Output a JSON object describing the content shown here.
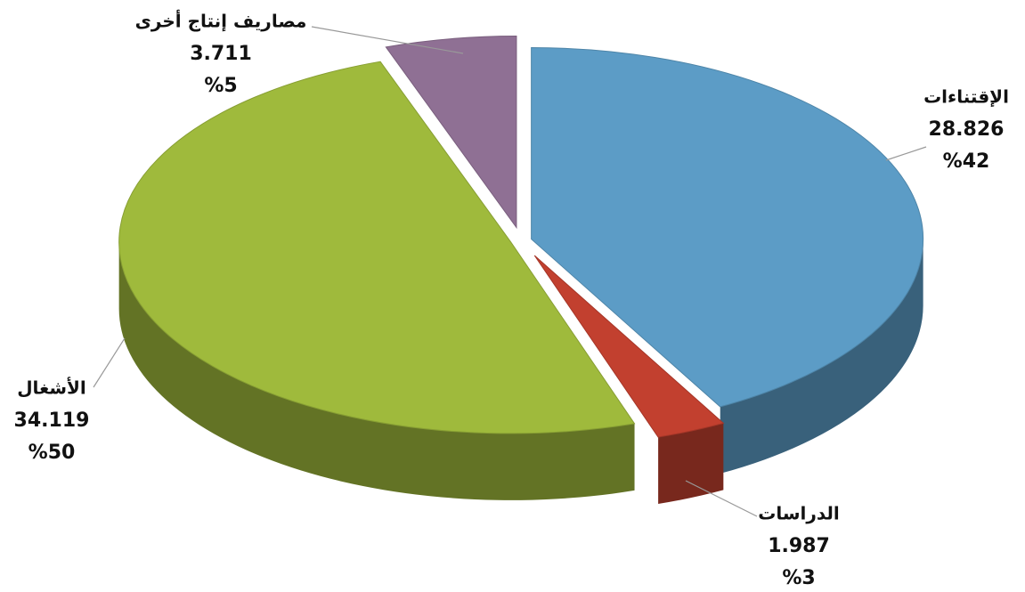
{
  "chart_data": {
    "type": "pie",
    "categories": [
      "الإقتناءات",
      "الدراسات",
      "الأشغال",
      "مصاريف إنتاج أخرى"
    ],
    "values": [
      28.826,
      1.987,
      34.119,
      3.711
    ],
    "percents": [
      42,
      3,
      50,
      5
    ],
    "percent_labels": [
      "%42",
      "%3",
      "%50",
      "%5"
    ],
    "colors": [
      "#5c9cc6",
      "#c2402f",
      "#9fba3c",
      "#8f7094"
    ]
  }
}
